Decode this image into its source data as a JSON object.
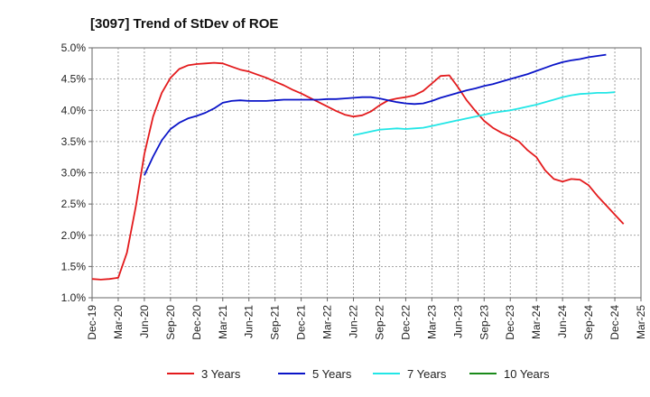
{
  "chart_data": {
    "type": "line",
    "title": "[3097]  Trend of StDev of ROE",
    "xlabel": "",
    "ylabel": "",
    "x_ticks": [
      "Dec-19",
      "Mar-20",
      "Jun-20",
      "Sep-20",
      "Dec-20",
      "Mar-21",
      "Jun-21",
      "Sep-21",
      "Dec-21",
      "Mar-22",
      "Jun-22",
      "Sep-22",
      "Dec-22",
      "Mar-23",
      "Jun-23",
      "Sep-23",
      "Dec-23",
      "Mar-24",
      "Jun-24",
      "Sep-24",
      "Dec-24",
      "Mar-25"
    ],
    "y_ticks": [
      "1.0%",
      "1.5%",
      "2.0%",
      "2.5%",
      "3.0%",
      "3.5%",
      "4.0%",
      "4.5%",
      "5.0%"
    ],
    "ylim": [
      1.0,
      5.0
    ],
    "grid": true,
    "legend_position": "bottom",
    "series": [
      {
        "name": "3 Years",
        "color": "#e31a1c",
        "start_index": 0,
        "values": [
          1.3,
          1.29,
          1.3,
          1.32,
          1.72,
          2.45,
          3.3,
          3.9,
          4.28,
          4.52,
          4.66,
          4.72,
          4.74,
          4.75,
          4.76,
          4.75,
          4.7,
          4.65,
          4.62,
          4.57,
          4.52,
          4.46,
          4.4,
          4.33,
          4.27,
          4.2,
          4.13,
          4.06,
          3.99,
          3.93,
          3.9,
          3.92,
          3.98,
          4.08,
          4.16,
          4.19,
          4.21,
          4.24,
          4.31,
          4.43,
          4.55,
          4.56,
          4.37,
          4.16,
          3.99,
          3.83,
          3.72,
          3.64,
          3.58,
          3.5,
          3.36,
          3.25,
          3.04,
          2.9,
          2.86,
          2.9,
          2.89,
          2.8,
          2.63,
          2.48,
          2.33,
          2.18
        ]
      },
      {
        "name": "5 Years",
        "color": "#0a14c8",
        "start_index": 6,
        "values": [
          2.96,
          3.26,
          3.52,
          3.7,
          3.8,
          3.87,
          3.91,
          3.96,
          4.03,
          4.12,
          4.15,
          4.16,
          4.15,
          4.15,
          4.15,
          4.16,
          4.17,
          4.17,
          4.17,
          4.17,
          4.17,
          4.18,
          4.18,
          4.19,
          4.2,
          4.21,
          4.21,
          4.19,
          4.16,
          4.13,
          4.11,
          4.1,
          4.11,
          4.15,
          4.2,
          4.24,
          4.28,
          4.32,
          4.35,
          4.39,
          4.42,
          4.46,
          4.5,
          4.54,
          4.58,
          4.63,
          4.68,
          4.73,
          4.77,
          4.8,
          4.82,
          4.85,
          4.87,
          4.89
        ]
      },
      {
        "name": "7 Years",
        "color": "#22e6e6",
        "start_index": 30,
        "values": [
          3.6,
          3.63,
          3.66,
          3.69,
          3.7,
          3.71,
          3.7,
          3.71,
          3.72,
          3.75,
          3.78,
          3.81,
          3.84,
          3.87,
          3.9,
          3.93,
          3.96,
          3.98,
          4.0,
          4.03,
          4.06,
          4.09,
          4.13,
          4.17,
          4.21,
          4.24,
          4.26,
          4.27,
          4.28,
          4.28,
          4.29
        ]
      },
      {
        "name": "10 Years",
        "color": "#1a8a1a",
        "start_index": 0,
        "values": []
      }
    ]
  }
}
